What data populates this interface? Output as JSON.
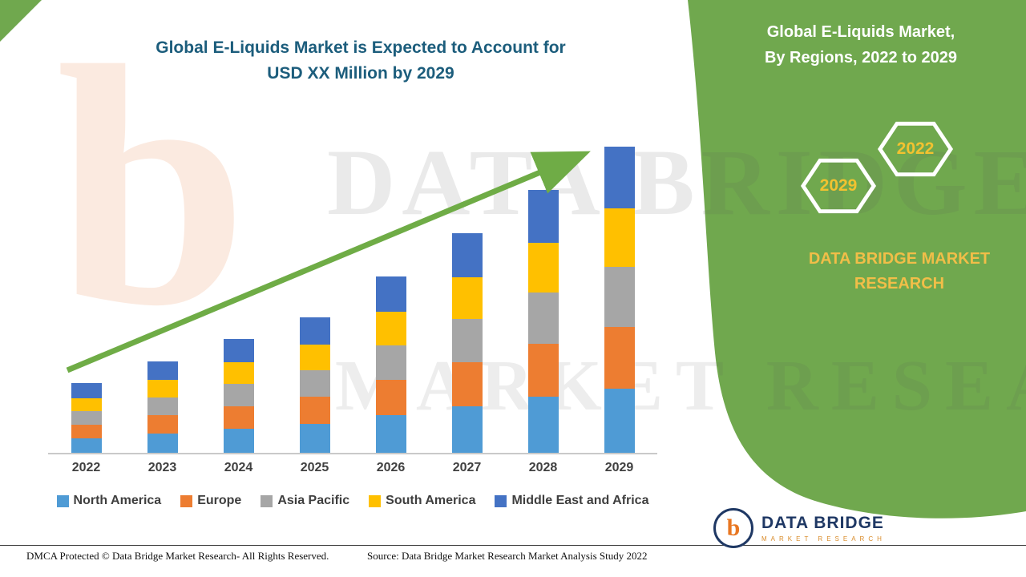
{
  "title": {
    "line1": "Global E-Liquids Market is Expected to Account for",
    "line2": "USD XX Million by 2029"
  },
  "side_panel": {
    "heading_line1": "Global E-Liquids Market,",
    "heading_line2": "By Regions, 2022 to 2029",
    "badge_2029": "2029",
    "badge_2022": "2022",
    "brand_line1": "DATA BRIDGE MARKET",
    "brand_line2": "RESEARCH"
  },
  "watermark": {
    "logo_letter": "b",
    "line1": "DATA BRIDGE",
    "line2": "MARKET RESEARCH"
  },
  "chart_data": {
    "type": "bar",
    "stacked": true,
    "title": "Global E-Liquids Market is Expected to Account for USD XX Million by 2029",
    "categories": [
      "2022",
      "2023",
      "2024",
      "2025",
      "2026",
      "2027",
      "2028",
      "2029"
    ],
    "series": [
      {
        "name": "North America",
        "color": "#4F9BD5",
        "values": [
          18,
          24,
          30,
          36,
          47,
          58,
          70,
          80
        ]
      },
      {
        "name": "Europe",
        "color": "#ED7D31",
        "values": [
          17,
          23,
          28,
          34,
          44,
          55,
          66,
          77
        ]
      },
      {
        "name": "Asia Pacific",
        "color": "#A6A6A6",
        "values": [
          17,
          22,
          28,
          33,
          43,
          54,
          64,
          75
        ]
      },
      {
        "name": "South America",
        "color": "#FFC000",
        "values": [
          16,
          22,
          27,
          32,
          42,
          52,
          62,
          73
        ]
      },
      {
        "name": "Middle East and Africa",
        "color": "#4472C4",
        "values": [
          19,
          23,
          29,
          34,
          44,
          55,
          66,
          77
        ]
      }
    ],
    "totals": [
      87,
      114,
      142,
      169,
      220,
      274,
      328,
      382
    ],
    "xlabel": "",
    "ylabel": "",
    "ylim": [
      0,
      390
    ],
    "y_axis_visible": false,
    "gridlines": false,
    "legend_position": "bottom",
    "trend_arrow": true,
    "note": "No numeric y-axis shown in source; values are relative units estimated from bar heights"
  },
  "footer": {
    "left": "DMCA Protected © Data Bridge Market Research- All Rights Reserved.",
    "source": "Source: Data Bridge Market Research Market Analysis Study 2022"
  },
  "logo": {
    "monogram": "b",
    "name": "DATA BRIDGE",
    "subtitle": "MARKET RESEARCH"
  },
  "colors": {
    "panel_green": "#70A84E",
    "accent_yellow": "#F1BE48",
    "badge_yellow": "#F2C230",
    "title_blue": "#1C5D7C",
    "arrow_green": "#6FAC46",
    "axis_line": "#C9C9C9",
    "label_gray": "#404040"
  }
}
